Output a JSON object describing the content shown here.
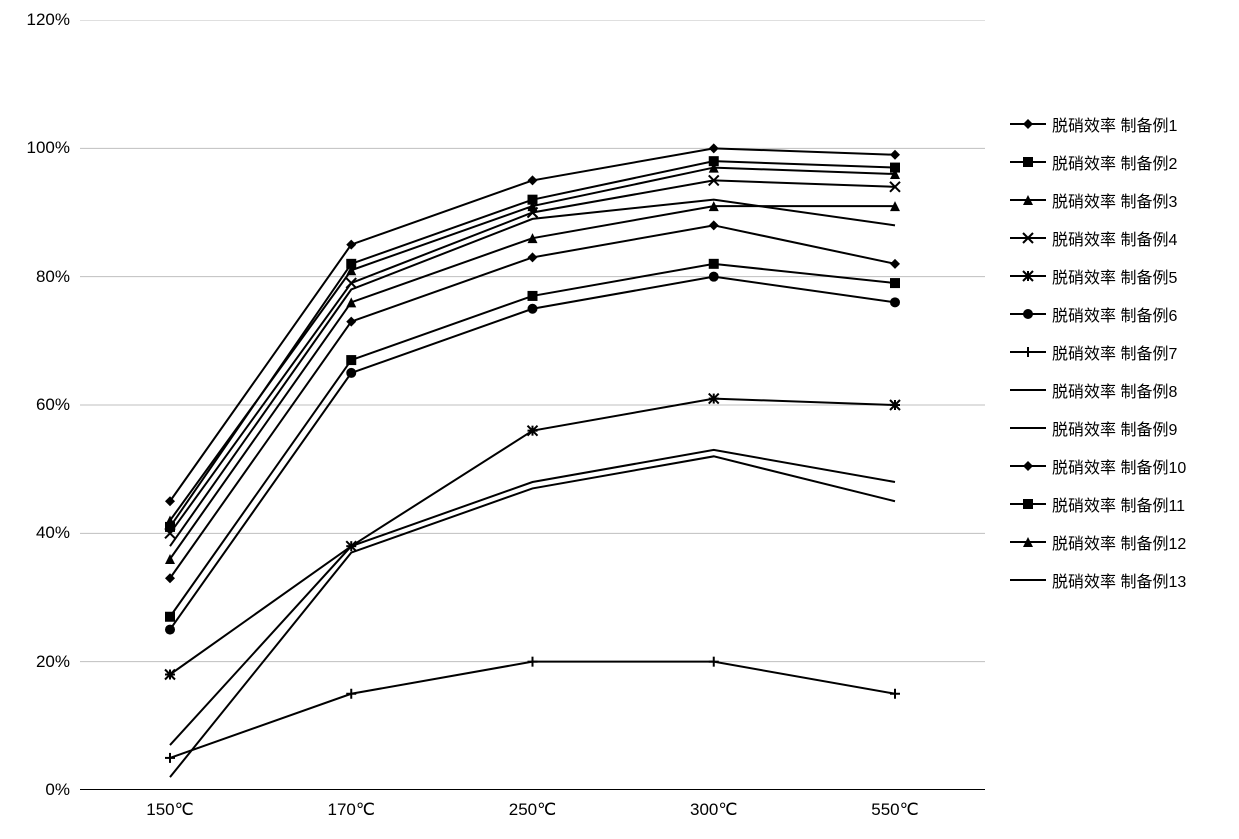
{
  "chart": {
    "type": "line",
    "background_color": "#ffffff",
    "grid_color": "#bfbfbf",
    "axis_color": "#000000",
    "line_color": "#000000",
    "line_width": 2,
    "marker_size": 10,
    "font_size_axis": 17,
    "font_size_legend": 16,
    "ylim": [
      0,
      120
    ],
    "ytick_step": 20,
    "yticks": [
      "0%",
      "20%",
      "40%",
      "60%",
      "80%",
      "100%",
      "120%"
    ],
    "xticks": [
      "150℃",
      "170℃",
      "250℃",
      "300℃",
      "550℃"
    ],
    "categories": [
      "150℃",
      "170℃",
      "250℃",
      "300℃",
      "550℃"
    ],
    "series": [
      {
        "label": "脱硝效率 制备例1",
        "marker": "diamond",
        "values": [
          45,
          85,
          95,
          100,
          99
        ]
      },
      {
        "label": "脱硝效率 制备例2",
        "marker": "square",
        "values": [
          41,
          82,
          92,
          98,
          97
        ]
      },
      {
        "label": "脱硝效率 制备例3",
        "marker": "triangle",
        "values": [
          42,
          81,
          91,
          97,
          96
        ]
      },
      {
        "label": "脱硝效率 制备例4",
        "marker": "cross",
        "values": [
          40,
          79,
          90,
          95,
          94
        ]
      },
      {
        "label": "脱硝效率 制备例5",
        "marker": "asterisk",
        "values": [
          18,
          38,
          56,
          61,
          60
        ]
      },
      {
        "label": "脱硝效率 制备例6",
        "marker": "circle",
        "values": [
          25,
          65,
          75,
          80,
          76
        ]
      },
      {
        "label": "脱硝效率 制备例7",
        "marker": "plus",
        "values": [
          5,
          15,
          20,
          20,
          15
        ]
      },
      {
        "label": "脱硝效率 制备例8",
        "marker": "none",
        "values": [
          2,
          37,
          47,
          52,
          45
        ]
      },
      {
        "label": "脱硝效率 制备例9",
        "marker": "none",
        "values": [
          7,
          38,
          48,
          53,
          48
        ]
      },
      {
        "label": "脱硝效率 制备例10",
        "marker": "diamond",
        "values": [
          33,
          73,
          83,
          88,
          82
        ]
      },
      {
        "label": "脱硝效率 制备例11",
        "marker": "square",
        "values": [
          27,
          67,
          77,
          82,
          79
        ]
      },
      {
        "label": "脱硝效率 制备例12",
        "marker": "triangle",
        "values": [
          36,
          76,
          86,
          91,
          91
        ]
      },
      {
        "label": "脱硝效率 制备例13",
        "marker": "none",
        "values": [
          38,
          78,
          89,
          92,
          88
        ]
      }
    ]
  }
}
